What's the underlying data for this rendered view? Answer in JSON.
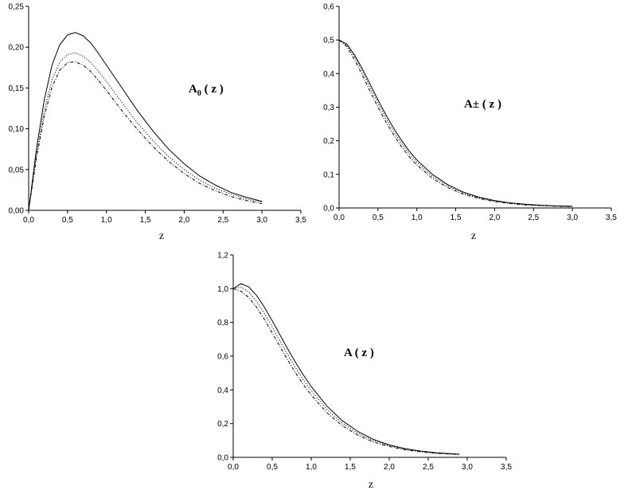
{
  "chart_data": [
    {
      "type": "line",
      "annotation": {
        "main": "A",
        "sub": "0",
        "rest": " ( z )"
      },
      "xlabel": "z",
      "ylabel": "",
      "xlim": [
        0,
        3.5
      ],
      "ylim": [
        0,
        0.25
      ],
      "xticks": [
        "0,0",
        "0,5",
        "1,0",
        "1,5",
        "2,0",
        "2,5",
        "3,0",
        "3,5"
      ],
      "yticks": [
        "0,00",
        "0,05",
        "0,10",
        "0,15",
        "0,20",
        "0,25"
      ],
      "grid": false,
      "x": [
        0,
        0.1,
        0.2,
        0.3,
        0.4,
        0.5,
        0.6,
        0.7,
        0.8,
        0.9,
        1.0,
        1.2,
        1.4,
        1.6,
        1.8,
        2.0,
        2.2,
        2.4,
        2.6,
        2.8,
        3.0
      ],
      "series": [
        {
          "style": "solid",
          "values": [
            0,
            0.075,
            0.135,
            0.178,
            0.203,
            0.215,
            0.218,
            0.214,
            0.205,
            0.192,
            0.178,
            0.15,
            0.122,
            0.097,
            0.075,
            0.057,
            0.042,
            0.031,
            0.022,
            0.016,
            0.011
          ]
        },
        {
          "style": "dotted",
          "values": [
            0,
            0.068,
            0.122,
            0.16,
            0.182,
            0.191,
            0.193,
            0.189,
            0.181,
            0.17,
            0.158,
            0.132,
            0.107,
            0.085,
            0.066,
            0.05,
            0.037,
            0.027,
            0.02,
            0.014,
            0.01
          ]
        },
        {
          "style": "dashdot",
          "values": [
            0,
            0.064,
            0.115,
            0.151,
            0.172,
            0.181,
            0.182,
            0.178,
            0.17,
            0.159,
            0.147,
            0.122,
            0.099,
            0.078,
            0.06,
            0.045,
            0.033,
            0.024,
            0.017,
            0.012,
            0.008
          ]
        }
      ]
    },
    {
      "type": "line",
      "annotation": {
        "main": "A± ( z )",
        "sub": "",
        "rest": ""
      },
      "xlabel": "z",
      "ylabel": "",
      "xlim": [
        0,
        3.5
      ],
      "ylim": [
        0,
        0.6
      ],
      "xticks": [
        "0,0",
        "0,5",
        "1,0",
        "1,5",
        "2,0",
        "2,5",
        "3,0",
        "3,5"
      ],
      "yticks": [
        "0,0",
        "0,1",
        "0,2",
        "0,3",
        "0,4",
        "0,5",
        "0,6"
      ],
      "grid": false,
      "x": [
        0,
        0.1,
        0.2,
        0.3,
        0.4,
        0.5,
        0.6,
        0.7,
        0.8,
        0.9,
        1.0,
        1.2,
        1.4,
        1.6,
        1.8,
        2.0,
        2.2,
        2.4,
        2.6,
        2.8,
        3.0
      ],
      "series": [
        {
          "style": "solid",
          "values": [
            0.5,
            0.488,
            0.455,
            0.414,
            0.368,
            0.322,
            0.278,
            0.238,
            0.202,
            0.17,
            0.143,
            0.1,
            0.069,
            0.047,
            0.032,
            0.022,
            0.015,
            0.011,
            0.008,
            0.006,
            0.005
          ]
        },
        {
          "style": "dotted",
          "values": [
            0.5,
            0.485,
            0.45,
            0.406,
            0.359,
            0.312,
            0.268,
            0.228,
            0.193,
            0.162,
            0.136,
            0.094,
            0.065,
            0.044,
            0.03,
            0.021,
            0.014,
            0.01,
            0.007,
            0.006,
            0.005
          ]
        },
        {
          "style": "dashdot",
          "values": [
            0.5,
            0.48,
            0.441,
            0.395,
            0.347,
            0.3,
            0.257,
            0.218,
            0.183,
            0.153,
            0.128,
            0.088,
            0.06,
            0.041,
            0.028,
            0.019,
            0.013,
            0.009,
            0.007,
            0.005,
            0.004
          ]
        }
      ]
    },
    {
      "type": "line",
      "annotation": {
        "main": "A ( z )",
        "sub": "",
        "rest": ""
      },
      "xlabel": "z",
      "ylabel": "",
      "xlim": [
        0,
        3.5
      ],
      "ylim": [
        0,
        1.2
      ],
      "xticks": [
        "0,0",
        "0,5",
        "1,0",
        "1,5",
        "2,0",
        "2,5",
        "3,0",
        "3,5"
      ],
      "yticks": [
        "0,0",
        "0,2",
        "0,4",
        "0,6",
        "0,8",
        "1,0",
        "1,2"
      ],
      "grid": false,
      "x": [
        0,
        0.1,
        0.2,
        0.3,
        0.4,
        0.5,
        0.6,
        0.7,
        0.8,
        0.9,
        1.0,
        1.2,
        1.4,
        1.6,
        1.8,
        2.0,
        2.2,
        2.4,
        2.6,
        2.8,
        2.9
      ],
      "series": [
        {
          "style": "solid",
          "values": [
            1.0,
            1.03,
            1.01,
            0.96,
            0.89,
            0.81,
            0.726,
            0.642,
            0.562,
            0.488,
            0.42,
            0.305,
            0.217,
            0.153,
            0.106,
            0.074,
            0.052,
            0.037,
            0.027,
            0.021,
            0.019
          ]
        },
        {
          "style": "dotted",
          "values": [
            1.0,
            1.01,
            0.98,
            0.925,
            0.853,
            0.773,
            0.69,
            0.608,
            0.53,
            0.459,
            0.394,
            0.285,
            0.202,
            0.142,
            0.099,
            0.069,
            0.049,
            0.035,
            0.026,
            0.02,
            0.018
          ]
        },
        {
          "style": "dashdot",
          "values": [
            1.0,
            0.985,
            0.948,
            0.89,
            0.818,
            0.738,
            0.656,
            0.576,
            0.5,
            0.431,
            0.369,
            0.265,
            0.187,
            0.131,
            0.091,
            0.064,
            0.045,
            0.033,
            0.024,
            0.019,
            0.017
          ]
        }
      ]
    }
  ]
}
